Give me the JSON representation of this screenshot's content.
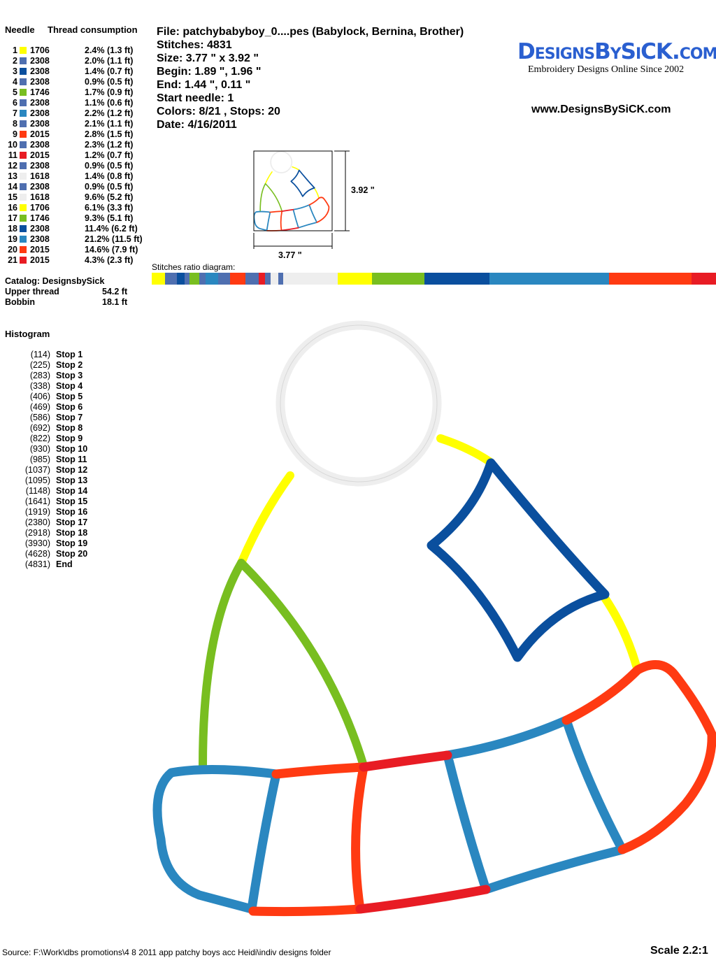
{
  "needle_table": {
    "header_needle": "Needle",
    "header_consumption": "Thread consumption",
    "rows": [
      {
        "n": "1",
        "color": "#ffff00",
        "code": "1706",
        "pct": "2.4% (1.3 ft)",
        "ratio": 2.4
      },
      {
        "n": "2",
        "color": "#4f6fb0",
        "code": "2308",
        "pct": "2.0% (1.1 ft)",
        "ratio": 2.0
      },
      {
        "n": "3",
        "color": "#0a4f9e",
        "code": "2308",
        "pct": "1.4% (0.7 ft)",
        "ratio": 1.4
      },
      {
        "n": "4",
        "color": "#4f6fb0",
        "code": "2308",
        "pct": "0.9% (0.5 ft)",
        "ratio": 0.9
      },
      {
        "n": "5",
        "color": "#78be20",
        "code": "1746",
        "pct": "1.7% (0.9 ft)",
        "ratio": 1.7
      },
      {
        "n": "6",
        "color": "#4f6fb0",
        "code": "2308",
        "pct": "1.1% (0.6 ft)",
        "ratio": 1.1
      },
      {
        "n": "7",
        "color": "#2a87c0",
        "code": "2308",
        "pct": "2.2% (1.2 ft)",
        "ratio": 2.2
      },
      {
        "n": "8",
        "color": "#4f6fb0",
        "code": "2308",
        "pct": "2.1% (1.1 ft)",
        "ratio": 2.1
      },
      {
        "n": "9",
        "color": "#ff3a12",
        "code": "2015",
        "pct": "2.8% (1.5 ft)",
        "ratio": 2.8
      },
      {
        "n": "10",
        "color": "#4f6fb0",
        "code": "2308",
        "pct": "2.3% (1.2 ft)",
        "ratio": 2.3
      },
      {
        "n": "11",
        "color": "#e81c24",
        "code": "2015",
        "pct": "1.2% (0.7 ft)",
        "ratio": 1.2
      },
      {
        "n": "12",
        "color": "#4f6fb0",
        "code": "2308",
        "pct": "0.9% (0.5 ft)",
        "ratio": 0.9
      },
      {
        "n": "13",
        "color": "#eeeeee",
        "code": "1618",
        "pct": "1.4% (0.8 ft)",
        "ratio": 1.4
      },
      {
        "n": "14",
        "color": "#4f6fb0",
        "code": "2308",
        "pct": "0.9% (0.5 ft)",
        "ratio": 0.9
      },
      {
        "n": "15",
        "color": "#eeeeee",
        "code": "1618",
        "pct": "9.6% (5.2 ft)",
        "ratio": 9.6
      },
      {
        "n": "16",
        "color": "#ffff00",
        "code": "1706",
        "pct": "6.1% (3.3 ft)",
        "ratio": 6.1
      },
      {
        "n": "17",
        "color": "#78be20",
        "code": "1746",
        "pct": "9.3% (5.1 ft)",
        "ratio": 9.3
      },
      {
        "n": "18",
        "color": "#0a4f9e",
        "code": "2308",
        "pct": "11.4% (6.2 ft)",
        "ratio": 11.4
      },
      {
        "n": "19",
        "color": "#2a87c0",
        "code": "2308",
        "pct": "21.2% (11.5 ft)",
        "ratio": 21.2
      },
      {
        "n": "20",
        "color": "#ff3a12",
        "code": "2015",
        "pct": "14.6% (7.9 ft)",
        "ratio": 14.6
      },
      {
        "n": "21",
        "color": "#e81c24",
        "code": "2015",
        "pct": "4.3% (2.3 ft)",
        "ratio": 4.3
      }
    ]
  },
  "catalog": {
    "label": "Catalog: DesignsbySick",
    "upper_label": "Upper thread",
    "upper_value": "54.2 ft",
    "bobbin_label": "Bobbin",
    "bobbin_value": "18.1 ft"
  },
  "histogram": {
    "title": "Histogram",
    "items": [
      {
        "count": "(114)",
        "label": "Stop 1"
      },
      {
        "count": "(225)",
        "label": "Stop 2"
      },
      {
        "count": "(283)",
        "label": "Stop 3"
      },
      {
        "count": "(338)",
        "label": "Stop 4"
      },
      {
        "count": "(406)",
        "label": "Stop 5"
      },
      {
        "count": "(469)",
        "label": "Stop 6"
      },
      {
        "count": "(586)",
        "label": "Stop 7"
      },
      {
        "count": "(692)",
        "label": "Stop 8"
      },
      {
        "count": "(822)",
        "label": "Stop 9"
      },
      {
        "count": "(930)",
        "label": "Stop 10"
      },
      {
        "count": "(985)",
        "label": "Stop 11"
      },
      {
        "count": "(1037)",
        "label": "Stop 12"
      },
      {
        "count": "(1095)",
        "label": "Stop 13"
      },
      {
        "count": "(1148)",
        "label": "Stop 14"
      },
      {
        "count": "(1641)",
        "label": "Stop 15"
      },
      {
        "count": "(1919)",
        "label": "Stop 16"
      },
      {
        "count": "(2380)",
        "label": "Stop 17"
      },
      {
        "count": "(2918)",
        "label": "Stop 18"
      },
      {
        "count": "(3930)",
        "label": "Stop 19"
      },
      {
        "count": "(4628)",
        "label": "Stop 20"
      },
      {
        "count": "(4831)",
        "label": "End"
      }
    ]
  },
  "info": {
    "file": "File: patchybabyboy_0....pes  (Babylock, Bernina, Brother)",
    "stitches": "Stitches: 4831",
    "size": "Size: 3.77 \" x 3.92 \"",
    "begin": "Begin: 1.89 \", 1.96 \"",
    "end": "End: 1.44 \", 0.11 \"",
    "start_needle": "Start needle: 1",
    "colors": "Colors: 8/21 , Stops: 20",
    "date": "Date: 4/16/2011"
  },
  "logo": {
    "text": "DesignsBySiCK.com",
    "tagline": "Embroidery Designs Online Since 2002",
    "url": "www.DesignsBySiCK.com",
    "color": "#2a5fd0"
  },
  "thumbnail": {
    "height_label": "3.92 \"",
    "width_label": "3.77 \""
  },
  "ratio_label": "Stitches ratio diagram:",
  "footer": {
    "source": "Source: F:\\Work\\dbs promotions\\4 8 2011 app patchy boys acc Heidi\\indiv designs folder",
    "scale": "Scale 2.2:1"
  }
}
